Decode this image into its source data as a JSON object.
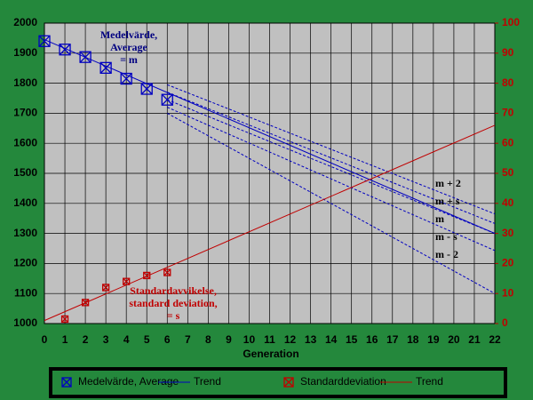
{
  "chart_data": {
    "type": "line",
    "x_label": "Generation",
    "xlim": [
      0,
      22
    ],
    "xticks": [
      0,
      1,
      2,
      3,
      4,
      5,
      6,
      7,
      8,
      9,
      10,
      11,
      12,
      13,
      14,
      15,
      16,
      17,
      18,
      19,
      20,
      21,
      22
    ],
    "ylim": [
      1000,
      2000
    ],
    "yticks": [
      1000,
      1100,
      1200,
      1300,
      1400,
      1500,
      1600,
      1700,
      1800,
      1900,
      2000
    ],
    "y2lim": [
      0,
      100
    ],
    "y2ticks": [
      0,
      10,
      20,
      30,
      40,
      50,
      60,
      70,
      80,
      90,
      100
    ],
    "grid": true,
    "series": [
      {
        "name": "Medelvärde, Average",
        "color": "#0000c0",
        "marker": "box-x",
        "x": [
          0,
          1,
          2,
          3,
          4,
          5,
          6
        ],
        "values": [
          1940,
          1912,
          1887,
          1851,
          1815,
          1781,
          1745
        ]
      },
      {
        "name": "Trend",
        "color": "#0000c0",
        "x": [
          0,
          22
        ],
        "values": [
          1945,
          1300
        ]
      },
      {
        "name": "Standarddeviation",
        "color": "#c00000",
        "marker": "box-x",
        "axis": "y2",
        "x": [
          1,
          2,
          3,
          4,
          5,
          6
        ],
        "values": [
          1.5,
          7,
          12,
          14,
          16,
          17
        ]
      },
      {
        "name": "Trend",
        "color": "#c00000",
        "axis": "y2",
        "x": [
          0,
          22
        ],
        "values": [
          1,
          66
        ]
      }
    ],
    "bands": [
      {
        "label": "m + 2",
        "x": [
          6,
          22
        ],
        "values": [
          1795,
          1365
        ]
      },
      {
        "label": "m + s",
        "x": [
          6,
          22
        ],
        "values": [
          1770,
          1333
        ]
      },
      {
        "label": "m",
        "x": [
          6,
          22
        ],
        "values": [
          1745,
          1300
        ]
      },
      {
        "label": "m - s",
        "x": [
          6,
          22
        ],
        "values": [
          1720,
          1243
        ]
      },
      {
        "label": "m - 2",
        "x": [
          6,
          22
        ],
        "values": [
          1700,
          1100
        ]
      }
    ],
    "annotations": [
      {
        "lines": [
          "Medelvärde,",
          "Average",
          "= m"
        ],
        "color": "#000080"
      },
      {
        "lines": [
          "Standardavvikelse,",
          "standard deviation,",
          "= s"
        ],
        "color": "#c00000"
      }
    ]
  }
}
